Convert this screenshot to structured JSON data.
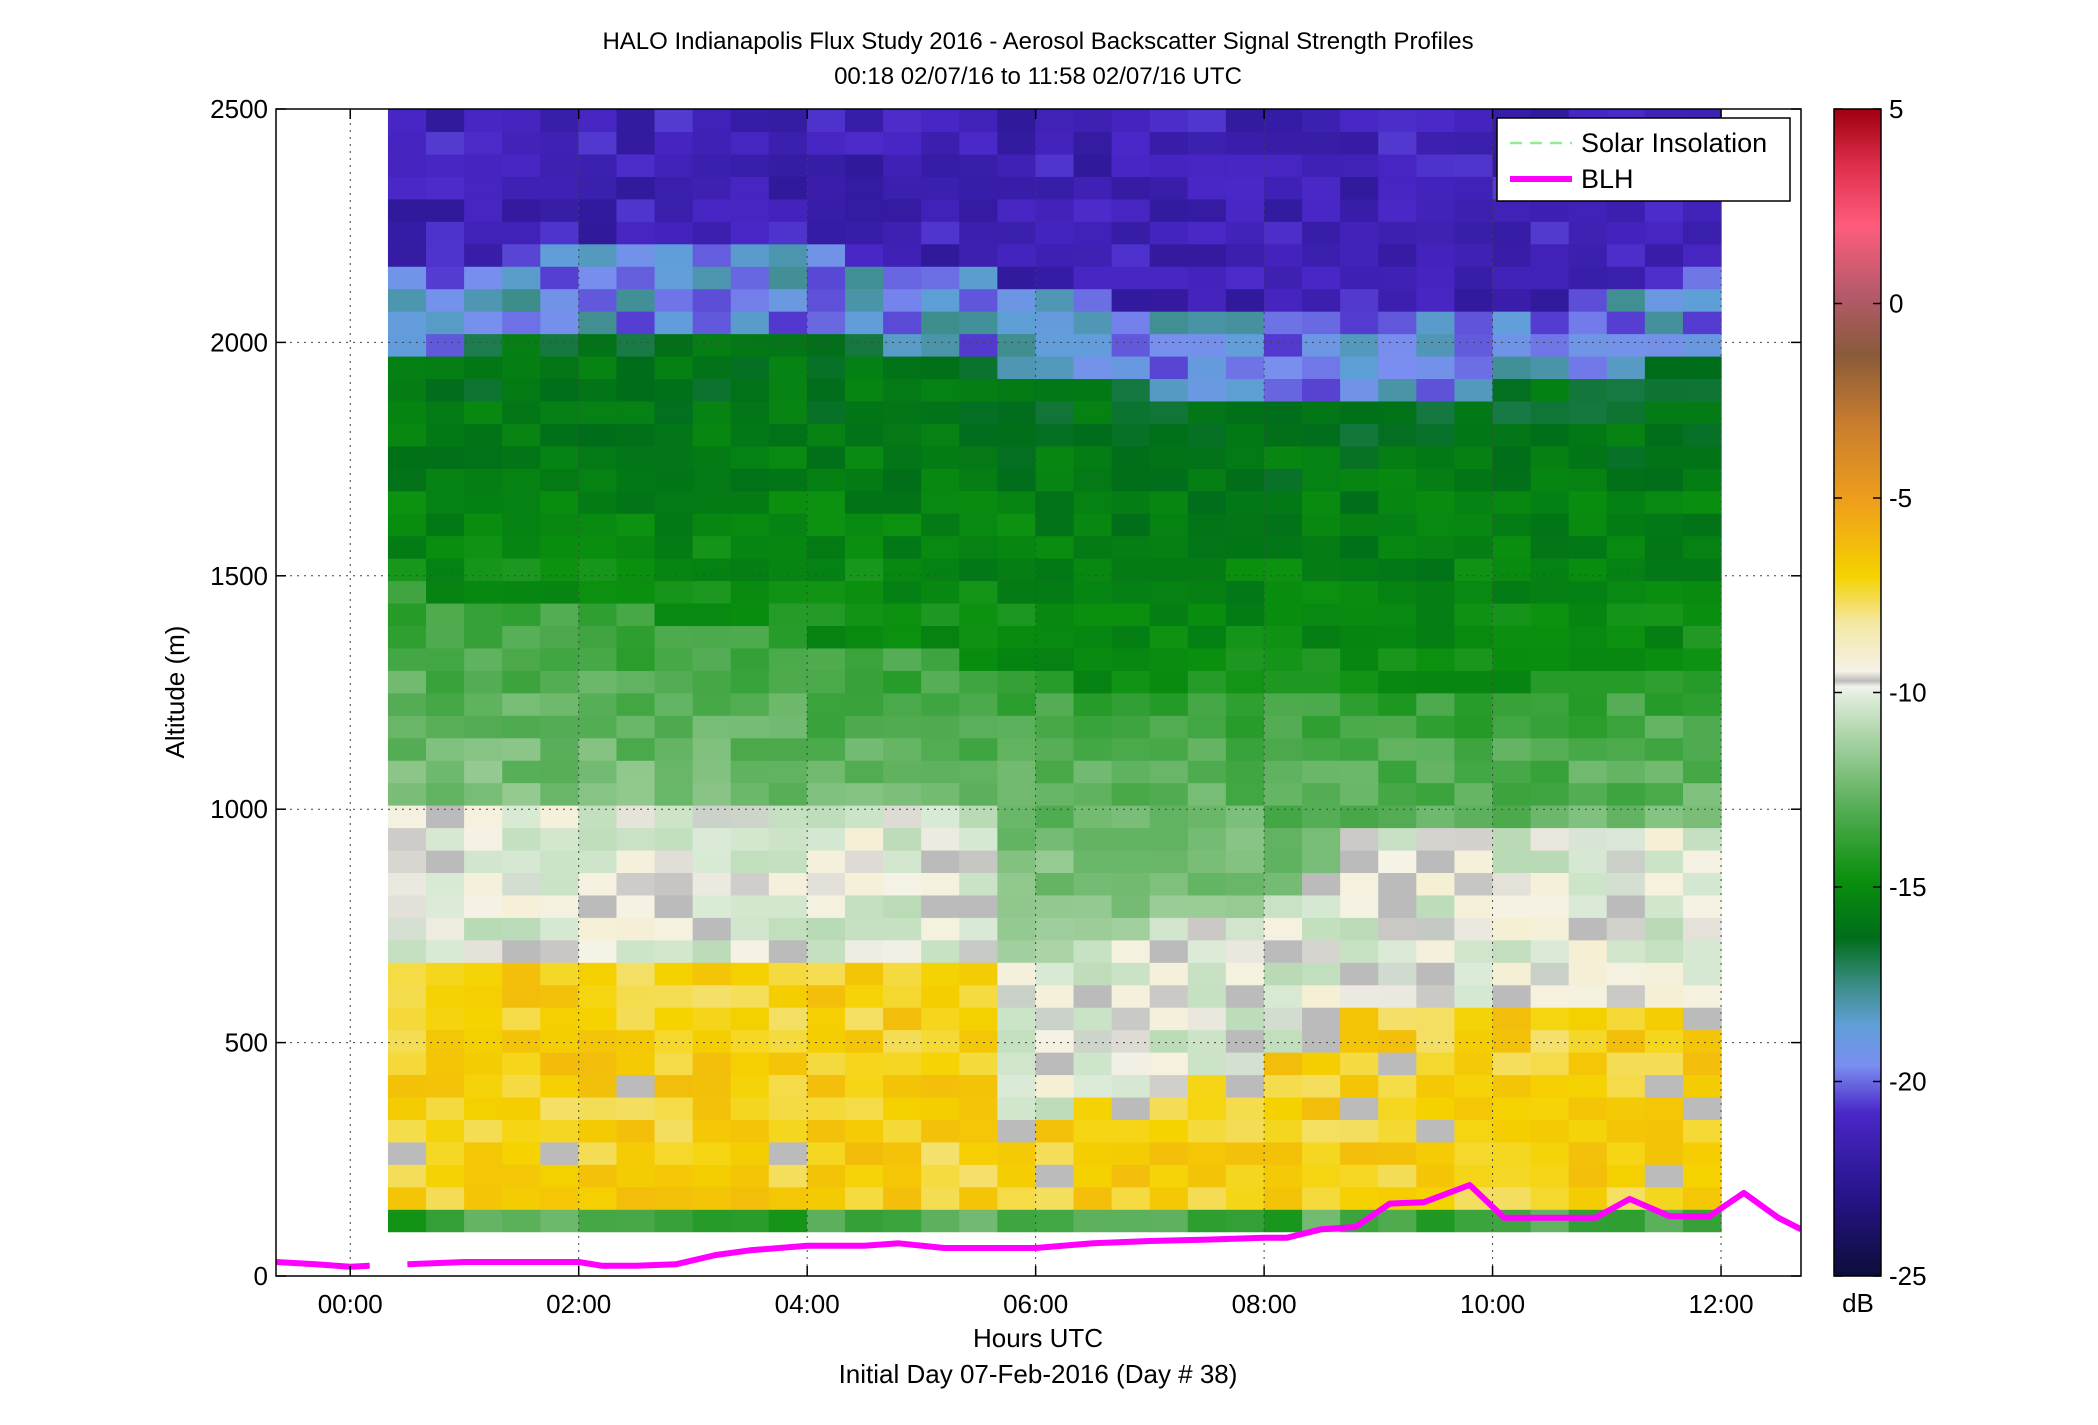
{
  "chart_data": {
    "type": "heatmap",
    "title": "HALO Indianapolis Flux Study 2016 - Aerosol Backscatter Signal Strength Profiles",
    "subtitle": "00:18 02/07/16 to 11:58 02/07/16  UTC",
    "xlabel": "Hours UTC",
    "xlabel2": "Initial Day 07-Feb-2016 (Day # 38)",
    "ylabel": "Altitude (m)",
    "xlim": [
      -0.65,
      12.7
    ],
    "ylim": [
      0,
      2500
    ],
    "x_ticks": [
      0,
      2,
      4,
      6,
      8,
      10,
      12
    ],
    "x_tick_labels": [
      "00:00",
      "02:00",
      "04:00",
      "06:00",
      "08:00",
      "10:00",
      "12:00"
    ],
    "y_ticks": [
      0,
      500,
      1000,
      1500,
      2000,
      2500
    ],
    "y_tick_labels": [
      "0",
      "500",
      "1000",
      "1500",
      "2000",
      "2500"
    ],
    "grid": true,
    "legend": {
      "position": "top-right",
      "entries": [
        {
          "label": "Solar Insolation",
          "color": "#90ee90",
          "style": "dashed"
        },
        {
          "label": "BLH",
          "color": "#ff00ff",
          "style": "solid"
        }
      ]
    },
    "colorbar": {
      "label": "dB",
      "range": [
        -25,
        5
      ],
      "ticks": [
        5,
        0,
        -5,
        -10,
        -15,
        -20,
        -25
      ],
      "tick_labels": [
        "5",
        "0",
        "-5",
        "-10",
        "-15",
        "-20",
        "-25"
      ]
    },
    "heatmap": {
      "x_start": 0.33,
      "x_end": 12.0,
      "y_start": 95,
      "y_end": 2500,
      "n_cols": 35,
      "n_rows": 50
    },
    "blh_series": {
      "name": "BLH",
      "segments": [
        {
          "x": [
            -0.65,
            -0.3,
            0.0,
            0.17
          ],
          "y": [
            30,
            25,
            20,
            22
          ]
        },
        {
          "x": [
            0.5,
            1.0,
            1.5,
            2.0,
            2.2,
            2.5,
            2.85,
            3.2,
            3.5,
            4.0,
            4.5,
            4.8,
            5.2,
            5.6,
            6.0,
            6.5,
            7.0,
            7.5,
            8.0,
            8.2,
            8.5,
            8.8,
            9.1,
            9.4,
            9.8,
            10.1,
            10.5,
            10.9,
            11.2,
            11.55,
            11.9,
            12.2,
            12.5,
            12.7
          ]
        }
      ]
    }
  }
}
